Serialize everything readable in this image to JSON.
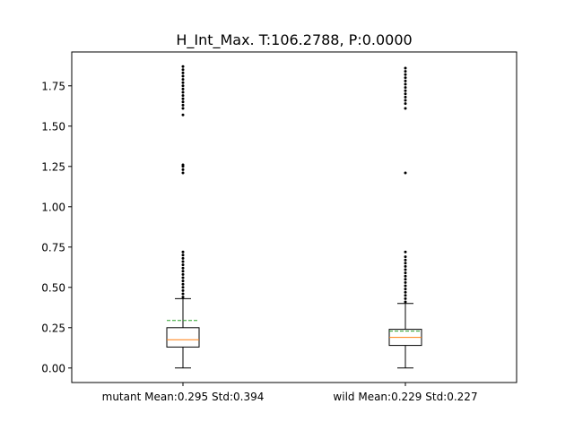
{
  "chart_data": {
    "type": "box",
    "title": "H_Int_Max. T:106.2788, P:0.0000",
    "categories": [
      "mutant Mean:0.295 Std:0.394",
      "wild Mean:0.229 Std:0.227"
    ],
    "xlabel": "",
    "ylabel": "",
    "ylim": [
      -0.09,
      1.96
    ],
    "yticks": [
      0.0,
      0.25,
      0.5,
      0.75,
      1.0,
      1.25,
      1.5,
      1.75
    ],
    "ytick_labels": [
      "0.00",
      "0.25",
      "0.50",
      "0.75",
      "1.00",
      "1.25",
      "1.50",
      "1.75"
    ],
    "grid": false,
    "show_means": true,
    "mean_line_style": "dashed",
    "series": [
      {
        "whisker_low": 0.0,
        "q1": 0.13,
        "median": 0.175,
        "q3": 0.25,
        "whisker_high": 0.43,
        "mean": 0.295,
        "outliers": [
          0.44,
          0.46,
          0.48,
          0.5,
          0.52,
          0.54,
          0.56,
          0.58,
          0.6,
          0.62,
          0.64,
          0.66,
          0.68,
          0.7,
          0.72,
          1.21,
          1.23,
          1.25,
          1.26,
          1.57,
          1.61,
          1.63,
          1.65,
          1.67,
          1.69,
          1.71,
          1.73,
          1.75,
          1.77,
          1.79,
          1.81,
          1.83,
          1.85,
          1.87
        ]
      },
      {
        "whisker_low": 0.0,
        "q1": 0.14,
        "median": 0.19,
        "q3": 0.24,
        "whisker_high": 0.4,
        "mean": 0.229,
        "outliers": [
          0.41,
          0.43,
          0.45,
          0.47,
          0.49,
          0.51,
          0.53,
          0.55,
          0.57,
          0.59,
          0.61,
          0.63,
          0.65,
          0.67,
          0.69,
          0.72,
          1.21,
          1.61,
          1.64,
          1.66,
          1.68,
          1.7,
          1.72,
          1.74,
          1.76,
          1.78,
          1.8,
          1.82,
          1.84,
          1.86
        ]
      }
    ],
    "colors": {
      "box": "#000000",
      "median": "#ff7f0e",
      "mean": "#2ca02c",
      "outlier": "#000000"
    }
  }
}
